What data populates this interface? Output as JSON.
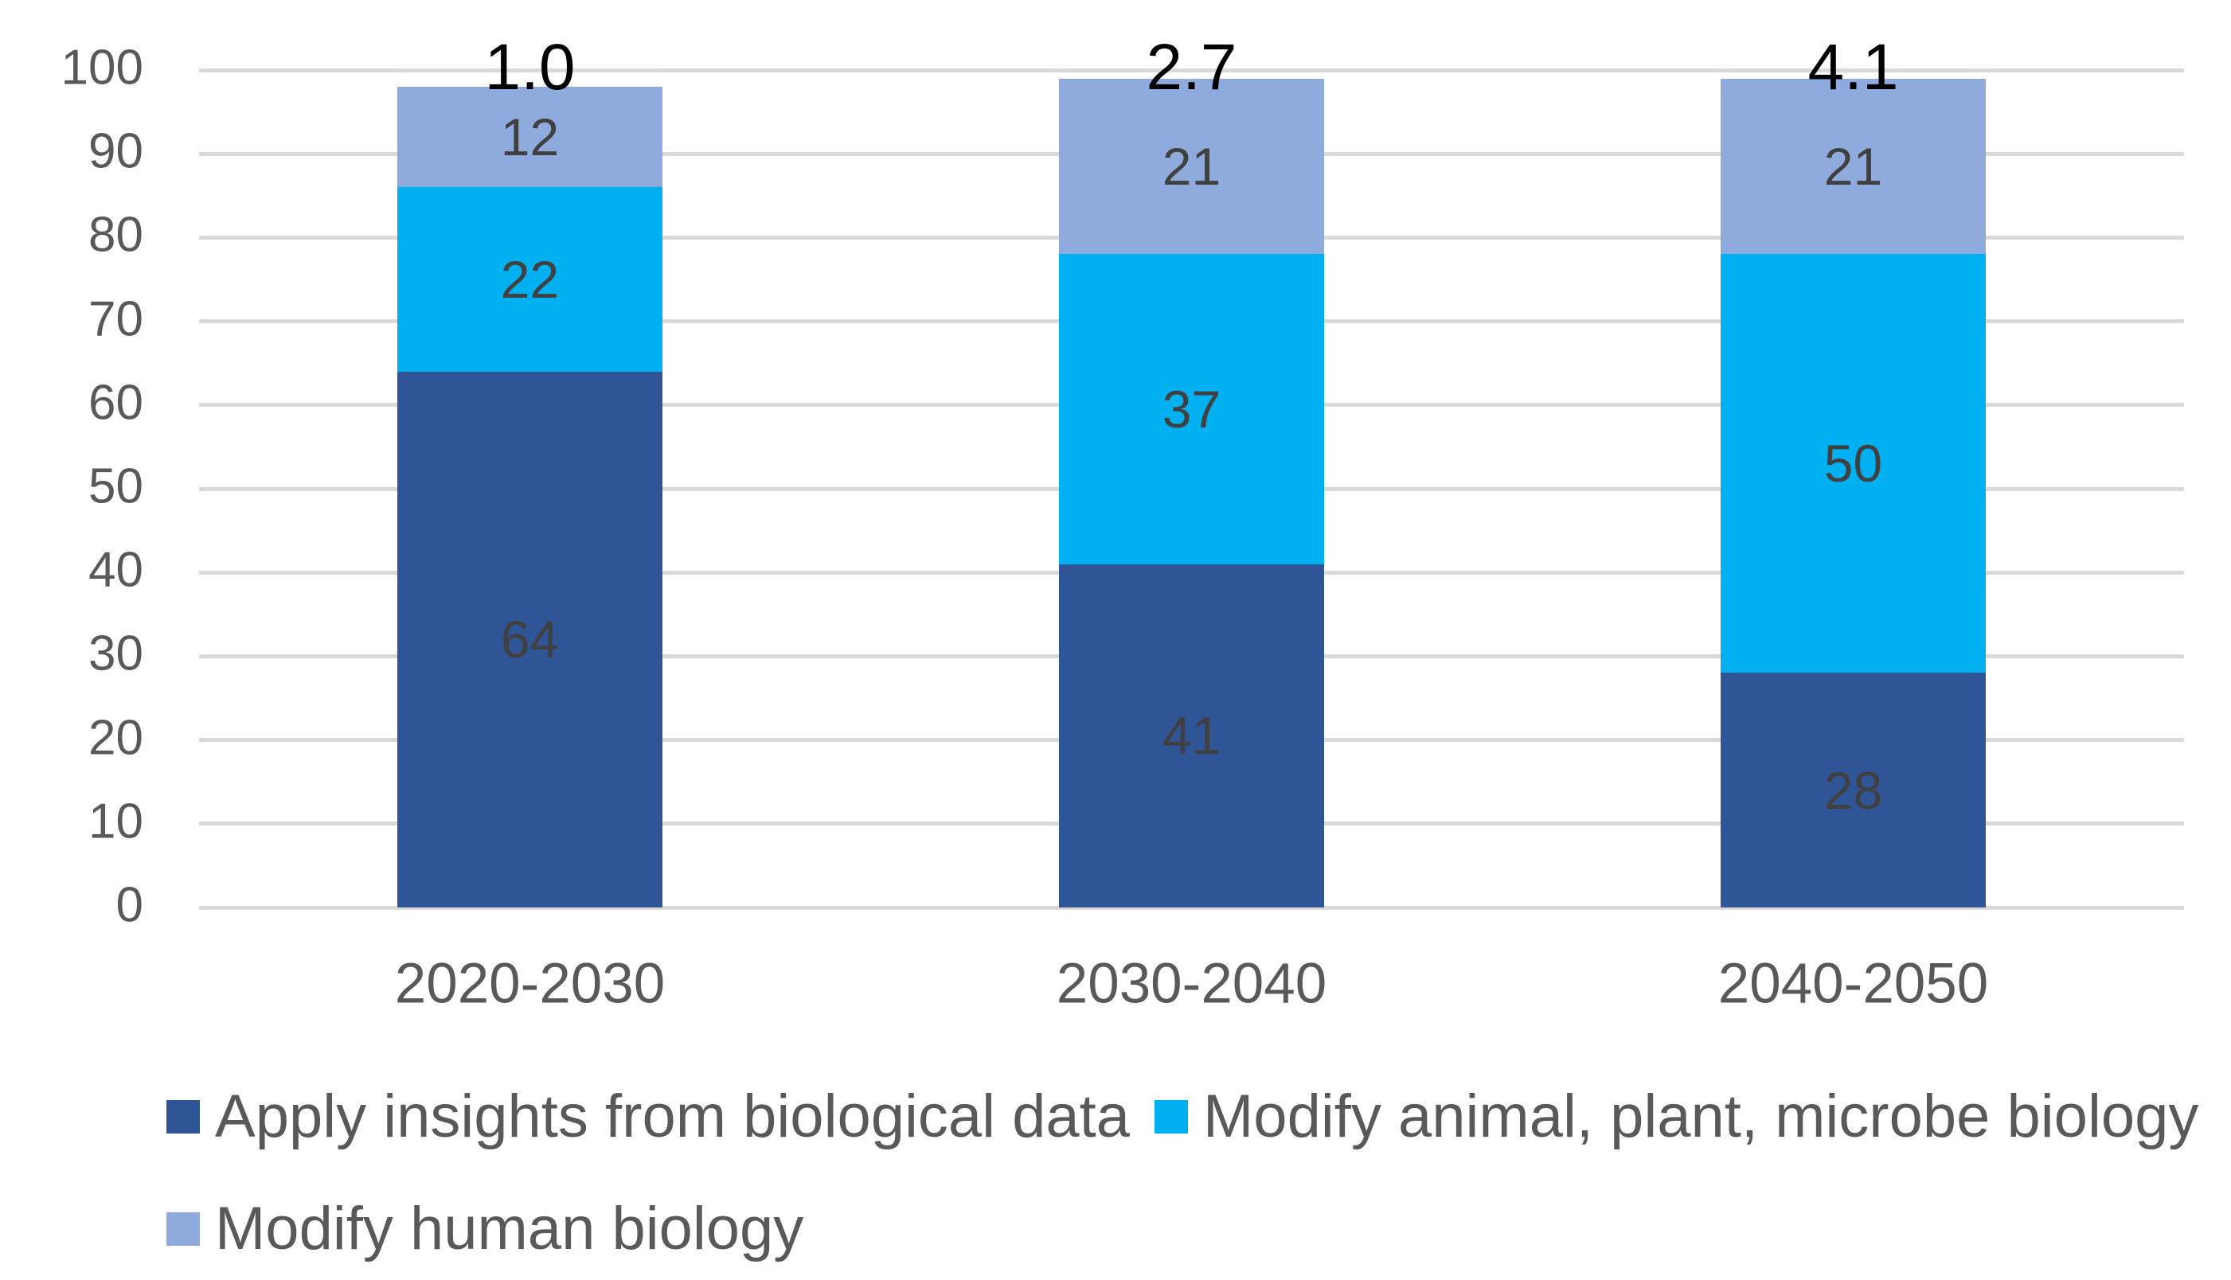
{
  "chart_data": {
    "type": "bar",
    "stacked": true,
    "title": "",
    "categories": [
      "2020-2030",
      "2030-2040",
      "2040-2050"
    ],
    "series": [
      {
        "name": "Apply insights from biological data",
        "color": "#2F5597",
        "values": [
          64,
          41,
          28
        ]
      },
      {
        "name": "Modify animal, plant, microbe biology",
        "color": "#00B0F0",
        "values": [
          22,
          37,
          50
        ]
      },
      {
        "name": "Modify human biology",
        "color": "#8FAADC",
        "values": [
          12,
          21,
          21
        ]
      }
    ],
    "bar_total_labels": [
      "1.0",
      "2.7",
      "4.1"
    ],
    "y_axis": {
      "min": 0,
      "max": 100,
      "step": 10,
      "tick_labels": [
        "0",
        "10",
        "20",
        "30",
        "40",
        "50",
        "60",
        "70",
        "80",
        "90",
        "100"
      ]
    },
    "grid": true,
    "legend_position": "bottom",
    "styles": {
      "background": "#FFFFFF",
      "gridline_color": "#D9D9D9",
      "axis_text_color": "#595959",
      "data_label_color": "#404040",
      "total_label_color": "#000000",
      "legend_text_color": "#595959"
    }
  }
}
